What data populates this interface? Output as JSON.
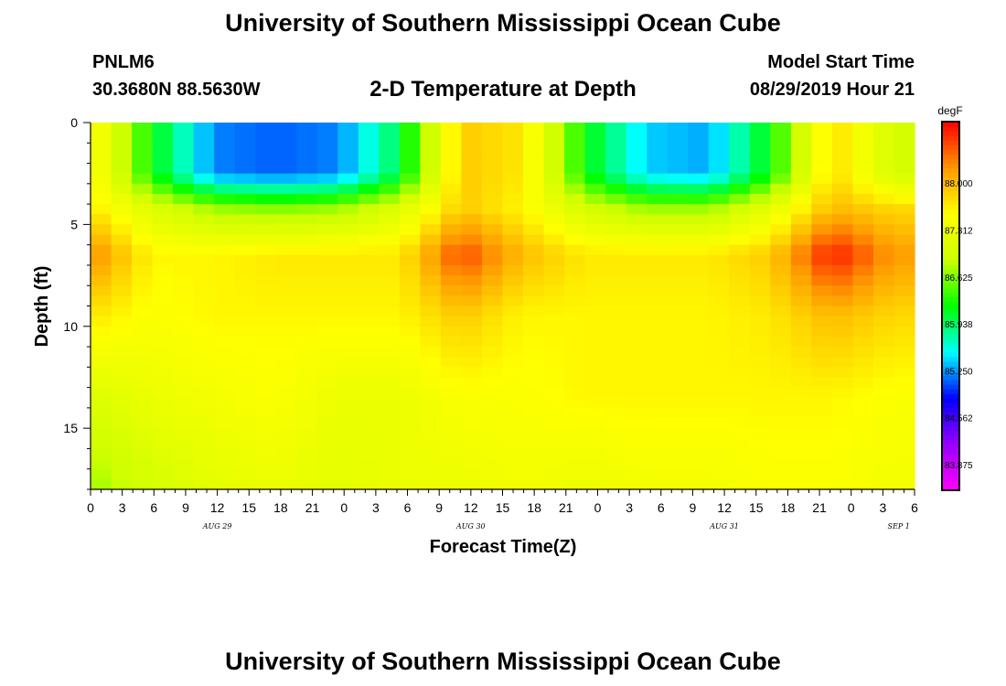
{
  "header": {
    "title": "University of Southern Mississippi Ocean Cube",
    "station": "PNLM6",
    "coords": "30.3680N 88.5630W",
    "subtitle": "2-D Temperature at Depth",
    "model_start_label": "Model Start Time",
    "model_start_value": "08/29/2019 Hour 21"
  },
  "footer": {
    "title": "University of Southern Mississippi Ocean Cube"
  },
  "chart_data": {
    "type": "heatmap",
    "title": "2-D Temperature at Depth",
    "xlabel": "Forecast Time(Z)",
    "ylabel": "Depth (ft)",
    "x_hours_start": 0,
    "x_hours_end": 78,
    "x_step_hours": 3,
    "x_tick_labels": [
      "0",
      "3",
      "6",
      "9",
      "12",
      "15",
      "18",
      "21",
      "0",
      "3",
      "6",
      "9",
      "12",
      "15",
      "18",
      "21",
      "0",
      "3",
      "6",
      "9",
      "12",
      "15",
      "18",
      "21",
      "0",
      "3",
      "6"
    ],
    "day_labels": [
      {
        "label": "AUG 29",
        "hour": 12
      },
      {
        "label": "AUG 30",
        "hour": 36
      },
      {
        "label": "AUG 31",
        "hour": 60
      },
      {
        "label": "SEP 1",
        "hour": 76.5
      }
    ],
    "ylim": [
      0,
      18
    ],
    "y_ticks": [
      0,
      5,
      10,
      15
    ],
    "y_inverted": true,
    "colorbar": {
      "title": "degF",
      "min": 83.5,
      "max": 88.9,
      "ticks": [
        "88.000",
        "87.312",
        "86.625",
        "85.938",
        "85.250",
        "84.562",
        "83.875"
      ],
      "tick_values": [
        88.0,
        87.312,
        86.625,
        85.938,
        85.25,
        84.562,
        83.875
      ],
      "colors": [
        "#ff00ff",
        "#9900ff",
        "#0000ff",
        "#00ffff",
        "#00ff00",
        "#ccff00",
        "#ffff00",
        "#ff9900",
        "#ff0000"
      ]
    },
    "depths_ft": [
      0.25,
      0.75,
      1.25,
      1.75,
      2.25,
      2.75,
      3.25,
      3.75,
      4.25,
      4.75,
      5.25,
      5.75,
      6.25,
      6.75,
      7.25,
      7.75,
      8.25,
      8.75,
      9.25,
      9.75,
      10.25,
      10.75,
      11.25,
      11.75,
      12.25,
      12.75,
      13.25,
      13.75,
      14.25,
      14.75,
      15.25,
      15.75,
      16.25,
      16.75,
      17.25,
      17.75
    ],
    "time_hours": [
      0,
      2,
      4,
      6,
      8,
      10,
      12,
      14,
      16,
      18,
      20,
      22,
      24,
      26,
      28,
      30,
      32,
      34,
      36,
      38,
      40,
      42,
      44,
      46,
      48,
      50,
      52,
      54,
      56,
      58,
      60,
      62,
      64,
      66,
      68,
      70,
      72,
      74,
      76,
      78
    ],
    "profiles": {
      "hours": [
        0,
        6,
        12,
        18,
        24,
        30,
        36,
        42,
        48,
        54,
        60,
        66,
        72,
        78
      ],
      "surface": [
        87.6,
        86.2,
        85.2,
        85.1,
        85.2,
        86.0,
        87.9,
        87.7,
        86.2,
        85.4,
        85.3,
        86.2,
        87.8,
        87.0
      ],
      "cool_layer": [
        87.7,
        87.1,
        86.7,
        86.6,
        86.7,
        87.1,
        87.9,
        87.6,
        87.0,
        86.7,
        86.7,
        87.2,
        88.0,
        87.8
      ],
      "warm_core": [
        88.3,
        87.6,
        87.6,
        87.7,
        87.7,
        87.7,
        88.6,
        88.0,
        87.7,
        87.7,
        87.7,
        87.9,
        88.8,
        88.2
      ],
      "mid": [
        87.7,
        87.5,
        87.6,
        87.6,
        87.6,
        87.6,
        87.9,
        87.6,
        87.6,
        87.6,
        87.6,
        87.7,
        88.0,
        87.8
      ],
      "deep": [
        87.1,
        87.3,
        87.4,
        87.5,
        87.3,
        87.3,
        87.5,
        87.5,
        87.6,
        87.6,
        87.6,
        87.6,
        87.6,
        87.5
      ],
      "bottom": [
        86.7,
        87.0,
        87.2,
        87.3,
        87.2,
        87.3,
        87.3,
        87.4,
        87.3,
        87.4,
        87.4,
        87.5,
        87.5,
        87.4
      ]
    }
  }
}
